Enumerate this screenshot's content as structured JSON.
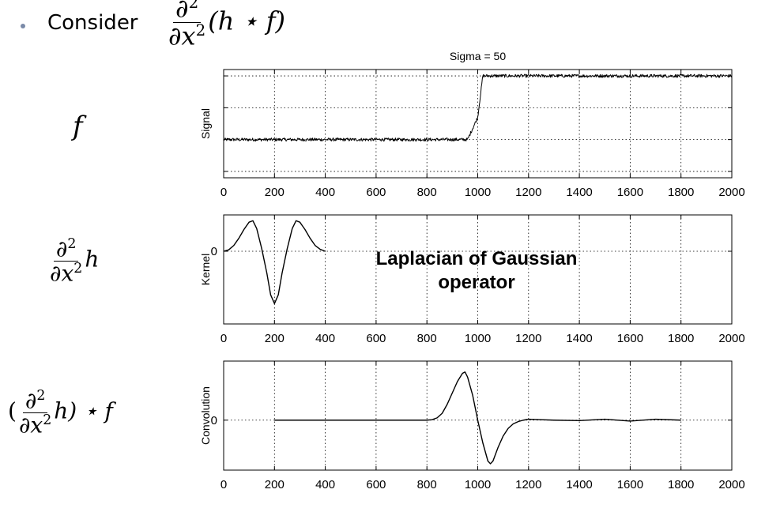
{
  "slide": {
    "bullet_text": "Consider",
    "header_formula": {
      "num": "∂",
      "num_sup": "2",
      "den": "∂x",
      "den_sup": "2",
      "expr": "(h ⋆ f)"
    },
    "row_labels": [
      {
        "symbol": "f"
      },
      {
        "num": "∂",
        "num_sup": "2",
        "den": "∂x",
        "den_sup": "2",
        "tail": "h"
      },
      {
        "open": "(",
        "num": "∂",
        "num_sup": "2",
        "den": "∂x",
        "den_sup": "2",
        "tail": "h) ⋆ f"
      }
    ],
    "overlay_text_line1": "Laplacian of Gaussian",
    "overlay_text_line2": "operator"
  },
  "chart_data": [
    {
      "type": "line",
      "title": "Sigma = 50",
      "ylabel": "Signal",
      "xlabel": "",
      "xlim": [
        0,
        2000
      ],
      "x_ticks": [
        0,
        200,
        400,
        600,
        800,
        1000,
        1200,
        1400,
        1600,
        1800,
        2000
      ],
      "ylim": [
        -1.2,
        2.2
      ],
      "y_tick_values": [
        -1,
        0,
        1,
        2
      ],
      "y_tick_labels": [],
      "grid": true,
      "series": [
        {
          "x": [
            0,
            960,
            980,
            1000,
            1020,
            2000
          ],
          "y": [
            0,
            0,
            0.35,
            0.7,
            2,
            2
          ],
          "noise_amplitude": 0.05
        }
      ]
    },
    {
      "type": "line",
      "title": "",
      "ylabel": "Kernel",
      "xlabel": "",
      "xlim": [
        0,
        2000
      ],
      "x_ticks": [
        0,
        200,
        400,
        600,
        800,
        1000,
        1200,
        1400,
        1600,
        1800,
        2000
      ],
      "ylim": [
        -1.5,
        0.75
      ],
      "y_tick_values": [
        0
      ],
      "y_tick_labels": [
        "0"
      ],
      "grid": true,
      "series": [
        {
          "x": [
            0,
            20,
            40,
            60,
            80,
            100,
            115,
            130,
            150,
            170,
            185,
            200,
            215,
            230,
            250,
            270,
            285,
            300,
            320,
            340,
            360,
            380,
            400
          ],
          "y": [
            0,
            0.03,
            0.12,
            0.27,
            0.45,
            0.6,
            0.63,
            0.47,
            0.05,
            -0.45,
            -0.9,
            -1.08,
            -0.9,
            -0.45,
            0.05,
            0.47,
            0.63,
            0.6,
            0.45,
            0.27,
            0.12,
            0.04,
            0
          ]
        }
      ]
    },
    {
      "type": "line",
      "title": "",
      "ylabel": "Convolution",
      "xlabel": "",
      "xlim": [
        0,
        2000
      ],
      "x_ticks": [
        0,
        200,
        400,
        600,
        800,
        1000,
        1200,
        1400,
        1600,
        1800,
        2000
      ],
      "ylim": [
        -1.1,
        1.3
      ],
      "y_tick_values": [
        0
      ],
      "y_tick_labels": [
        "0"
      ],
      "grid": true,
      "series": [
        {
          "x": [
            200,
            240,
            800,
            820,
            840,
            860,
            880,
            900,
            920,
            940,
            950,
            960,
            980,
            1000,
            1020,
            1040,
            1050,
            1060,
            1080,
            1100,
            1120,
            1140,
            1160,
            1180,
            1200,
            1250,
            1300,
            1400,
            1500,
            1600,
            1700,
            1800
          ],
          "y": [
            0,
            0,
            0,
            0.01,
            0.05,
            0.15,
            0.35,
            0.6,
            0.85,
            1.03,
            1.06,
            0.95,
            0.55,
            0.0,
            -0.5,
            -0.9,
            -0.96,
            -0.9,
            -0.6,
            -0.35,
            -0.18,
            -0.08,
            -0.03,
            0.0,
            0.02,
            0.01,
            0.0,
            -0.01,
            0.02,
            -0.02,
            0.02,
            0
          ]
        }
      ]
    }
  ]
}
